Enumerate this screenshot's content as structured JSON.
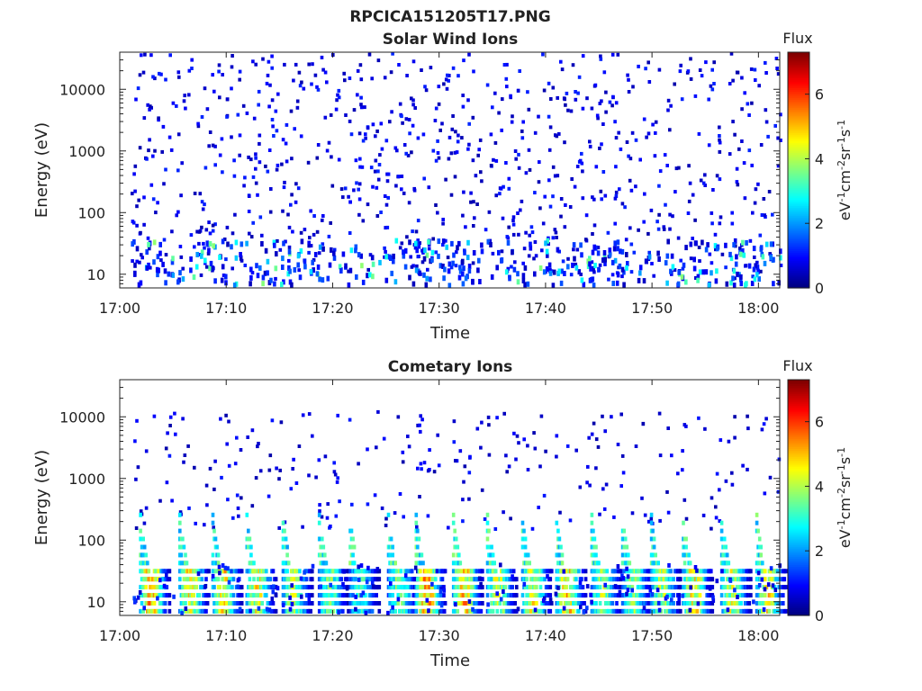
{
  "figure": {
    "title": "RPCICA151205T17.PNG"
  },
  "chart_data": [
    {
      "type": "heatmap",
      "title": "Solar Wind Ions",
      "xlabel": "Time",
      "ylabel": "Energy (eV)",
      "y_scale": "log",
      "ylim": [
        6,
        40000
      ],
      "xlim": [
        "17:00",
        "18:02"
      ],
      "x_ticks": [
        "17:00",
        "17:10",
        "17:20",
        "17:30",
        "17:40",
        "17:50",
        "18:00"
      ],
      "y_ticks": [
        "10",
        "100",
        "1000",
        "10000"
      ],
      "colorbar": {
        "label": "Flux",
        "unit": "eV-1cm-2sr-1s-1",
        "range": [
          0,
          7.3
        ],
        "ticks": [
          "0",
          "2",
          "4",
          "6"
        ],
        "colormap": "jet"
      },
      "description_values": {
        "time_range_minutes": [
          1,
          62
        ],
        "typical_flux": [
          0.4,
          3.5
        ],
        "low_energy_band_eV": [
          6,
          40
        ],
        "note": "sparse scattered counts across all energies, low flux"
      }
    },
    {
      "type": "heatmap",
      "title": "Cometary Ions",
      "xlabel": "Time",
      "ylabel": "Energy (eV)",
      "y_scale": "log",
      "ylim": [
        6,
        40000
      ],
      "xlim": [
        "17:00",
        "18:02"
      ],
      "x_ticks": [
        "17:00",
        "17:10",
        "17:20",
        "17:30",
        "17:40",
        "17:50",
        "18:00"
      ],
      "y_ticks": [
        "10",
        "100",
        "1000",
        "10000"
      ],
      "colorbar": {
        "label": "Flux",
        "unit": "eV-1cm-2sr-1s-1",
        "range": [
          0,
          7.3
        ],
        "ticks": [
          "0",
          "2",
          "4",
          "6"
        ],
        "colormap": "jet"
      },
      "bursts": [
        {
          "t": 2.6,
          "peak": 6.2
        },
        {
          "t": 6.3,
          "peak": 5.6
        },
        {
          "t": 9.4,
          "peak": 5.6
        },
        {
          "t": 12.6,
          "peak": 5.4
        },
        {
          "t": 16.0,
          "peak": 4.8
        },
        {
          "t": 19.4,
          "peak": 4.2
        },
        {
          "t": 22.3,
          "peak": 3.8
        },
        {
          "t": 25.9,
          "peak": 4.4
        },
        {
          "t": 28.5,
          "peak": 6.4
        },
        {
          "t": 32.0,
          "peak": 6.0
        },
        {
          "t": 35.2,
          "peak": 5.0
        },
        {
          "t": 38.5,
          "peak": 5.2
        },
        {
          "t": 41.7,
          "peak": 5.8
        },
        {
          "t": 45.0,
          "peak": 4.8
        },
        {
          "t": 47.9,
          "peak": 4.4
        },
        {
          "t": 50.6,
          "peak": 4.8
        },
        {
          "t": 53.6,
          "peak": 5.6
        },
        {
          "t": 57.2,
          "peak": 5.0
        },
        {
          "t": 60.5,
          "peak": 5.6
        }
      ]
    }
  ]
}
